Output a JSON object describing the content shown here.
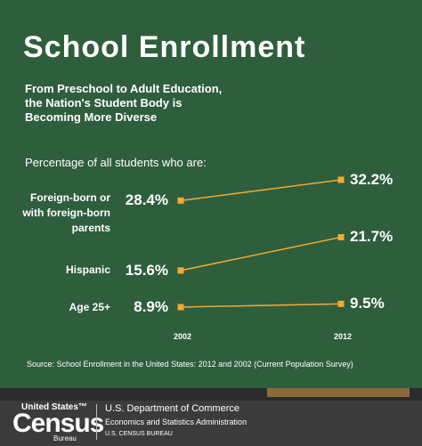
{
  "chart_data": {
    "type": "slope",
    "title": "School Enrollment",
    "subtitle": "From Preschool to Adult Education, the Nation's Student Body is Becoming More Diverse",
    "axis_label": "Percentage of all students who are:",
    "x": [
      "2002",
      "2012"
    ],
    "color": "#f2aa33",
    "series": [
      {
        "name": "Foreign-born or with foreign-born parents",
        "values": [
          28.4,
          32.2
        ],
        "value_labels": [
          "28.4%",
          "32.2%"
        ]
      },
      {
        "name": "Hispanic",
        "values": [
          15.6,
          21.7
        ],
        "value_labels": [
          "15.6%",
          "21.7%"
        ]
      },
      {
        "name": "Age 25+",
        "values": [
          8.9,
          9.5
        ],
        "value_labels": [
          "8.9%",
          "9.5%"
        ]
      }
    ],
    "source": "Source: School Enrollment in the United States: 2012 and 2002 (Current Population Survey)"
  },
  "footer": {
    "logo_top": "United States™",
    "logo_main": "Census",
    "logo_bottom": "Bureau",
    "line1": "U.S. Department of Commerce",
    "line2": "Economics and Statistics Administration",
    "line3": "U.S. CENSUS BUREAU"
  }
}
